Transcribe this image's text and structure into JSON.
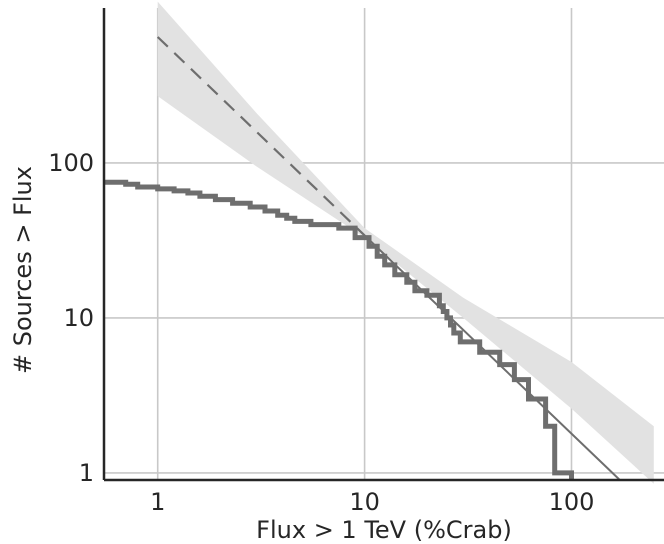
{
  "chart_data": {
    "type": "line",
    "title": "",
    "xlabel": "Flux > 1 TeV (%Crab)",
    "ylabel": "# Sources > Flux",
    "xscale": "log",
    "yscale": "log",
    "xlim": [
      0.55,
      280
    ],
    "ylim": [
      0.9,
      1000
    ],
    "grid": true,
    "legend": "none",
    "x_ticks": [
      1,
      10,
      100
    ],
    "x_tick_labels": [
      "1",
      "10",
      "100"
    ],
    "y_ticks": [
      1,
      10,
      100
    ],
    "y_tick_labels": [
      "1",
      "10",
      "100"
    ],
    "colors": {
      "grid": "#c8c8c8",
      "axis": "#262626",
      "series": "#6e6e6e",
      "band": "#e2e2e2"
    },
    "series": [
      {
        "kind": "step",
        "x": [
          0.55,
          0.7,
          0.8,
          1.0,
          1.2,
          1.4,
          1.6,
          1.9,
          2.3,
          2.8,
          3.3,
          3.8,
          4.2,
          4.6,
          5.5,
          7.5,
          9.0,
          10.5,
          11.5,
          12.5,
          14,
          16,
          17.5,
          20,
          23,
          24,
          25,
          26,
          27,
          29,
          30,
          33,
          36,
          40,
          45,
          53,
          62,
          70,
          75,
          80,
          83,
          100
        ],
        "y": [
          75,
          73,
          70,
          68,
          66,
          64,
          61,
          58,
          55,
          52,
          49,
          46,
          44,
          42,
          40,
          38,
          33,
          29,
          25,
          22,
          19,
          17,
          15,
          14,
          12,
          11,
          10,
          9,
          8,
          7,
          7,
          7,
          6,
          6,
          5,
          4,
          3,
          3,
          2,
          2,
          1,
          1
        ]
      },
      {
        "kind": "power-law-fit",
        "style": "dashed",
        "x_from": 1,
        "x_to": 10,
        "y_at_x1": 650,
        "slope": -1.28
      },
      {
        "kind": "power-law-fit",
        "style": "solid",
        "x_from": 10,
        "x_to": 170,
        "y_at_x1": 650,
        "slope": -1.28
      },
      {
        "kind": "confidence-band",
        "x": [
          1,
          3,
          10,
          30,
          100,
          250
        ],
        "lower": [
          270,
          95,
          33,
          10,
          2.6,
          0.85
        ],
        "upper": [
          1100,
          210,
          38,
          13.5,
          5.2,
          2.0
        ]
      }
    ]
  }
}
